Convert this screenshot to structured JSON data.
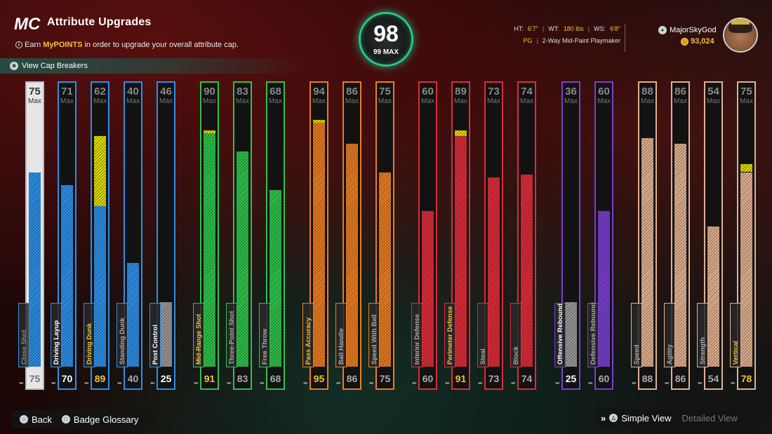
{
  "header": {
    "logo": "MC",
    "title": "Attribute Upgrades",
    "subtitle_pre": "Earn",
    "subtitle_hl": "MyPOINTS",
    "subtitle_post": "in order to upgrade your overall attribute cap.",
    "cap_breakers": "View Cap Breakers"
  },
  "overall": {
    "value": "98",
    "max": "99 MAX",
    "ring_color": "#27c68b"
  },
  "player": {
    "ht_label": "HT:",
    "ht": "6'7\"",
    "wt_label": "WT:",
    "wt": "180 lbs",
    "ws_label": "WS:",
    "ws": "6'8\"",
    "position": "PG",
    "archetype": "2-Way Mid-Paint Playmaker",
    "username": "MajorSkyGod",
    "coins": "93,024"
  },
  "max_label": "Max",
  "attributes": [
    {
      "name": "Close Shot",
      "cap": 75,
      "current": 75,
      "upgrade": 0,
      "color": "#2e8fe6",
      "selected": true,
      "label_style": "dim"
    },
    {
      "name": "Driving Layup",
      "cap": 71,
      "current": 70,
      "upgrade": 0,
      "color": "#2e8fe6",
      "label_style": "white"
    },
    {
      "name": "Driving Dunk",
      "cap": 62,
      "current": 89,
      "upgrade": 27,
      "color": "#2e8fe6",
      "label_style": "yellow"
    },
    {
      "name": "Standing Dunk",
      "cap": 40,
      "current": 40,
      "upgrade": 0,
      "color": "#2e8fe6",
      "label_style": "dim"
    },
    {
      "name": "Post Control",
      "cap": 46,
      "current": 25,
      "upgrade": 0,
      "color": "#2e8fe6",
      "label_style": "white",
      "gray_fill": true
    },
    {
      "name": "Mid-Range Shot",
      "cap": 90,
      "current": 91,
      "upgrade": 1,
      "color": "#2fc24a",
      "label_style": "yellow"
    },
    {
      "name": "Three-Point Shot",
      "cap": 83,
      "current": 83,
      "upgrade": 0,
      "color": "#2fc24a",
      "label_style": "dim"
    },
    {
      "name": "Free Throw",
      "cap": 68,
      "current": 68,
      "upgrade": 0,
      "color": "#2fc24a",
      "label_style": "dim"
    },
    {
      "name": "Pass Accuracy",
      "cap": 94,
      "current": 95,
      "upgrade": 1,
      "color": "#ea7d22",
      "label_style": "yellow"
    },
    {
      "name": "Ball Handle",
      "cap": 86,
      "current": 86,
      "upgrade": 0,
      "color": "#ea7d22",
      "label_style": "dim"
    },
    {
      "name": "Speed With Ball",
      "cap": 75,
      "current": 75,
      "upgrade": 0,
      "color": "#ea7d22",
      "label_style": "dim"
    },
    {
      "name": "Interior Defense",
      "cap": 60,
      "current": 60,
      "upgrade": 0,
      "color": "#dd2c3a",
      "label_style": "dim"
    },
    {
      "name": "Perimeter Defense",
      "cap": 89,
      "current": 91,
      "upgrade": 2,
      "color": "#dd2c3a",
      "label_style": "yellow"
    },
    {
      "name": "Steal",
      "cap": 73,
      "current": 73,
      "upgrade": 0,
      "color": "#dd2c3a",
      "label_style": "dim"
    },
    {
      "name": "Block",
      "cap": 74,
      "current": 74,
      "upgrade": 0,
      "color": "#dd2c3a",
      "label_style": "dim"
    },
    {
      "name": "Offensive Rebound",
      "cap": 36,
      "current": 25,
      "upgrade": 0,
      "color": "#7a3fcf",
      "label_style": "white",
      "gray_fill": true
    },
    {
      "name": "Defensive Rebound",
      "cap": 60,
      "current": 60,
      "upgrade": 0,
      "color": "#7a3fcf",
      "label_style": "dim"
    },
    {
      "name": "Speed",
      "cap": 88,
      "current": 88,
      "upgrade": 0,
      "color": "#e0b08f",
      "label_style": "dim"
    },
    {
      "name": "Agility",
      "cap": 86,
      "current": 86,
      "upgrade": 0,
      "color": "#e0b08f",
      "label_style": "dim"
    },
    {
      "name": "Strength",
      "cap": 54,
      "current": 54,
      "upgrade": 0,
      "color": "#e0b08f",
      "label_style": "dim"
    },
    {
      "name": "Vertical",
      "cap": 75,
      "current": 78,
      "upgrade": 3,
      "color": "#e0b08f",
      "label_style": "yellow"
    }
  ],
  "footer": {
    "back": "Back",
    "glossary": "Badge Glossary",
    "simple_view": "Simple View",
    "detailed_view": "Detailed View"
  }
}
